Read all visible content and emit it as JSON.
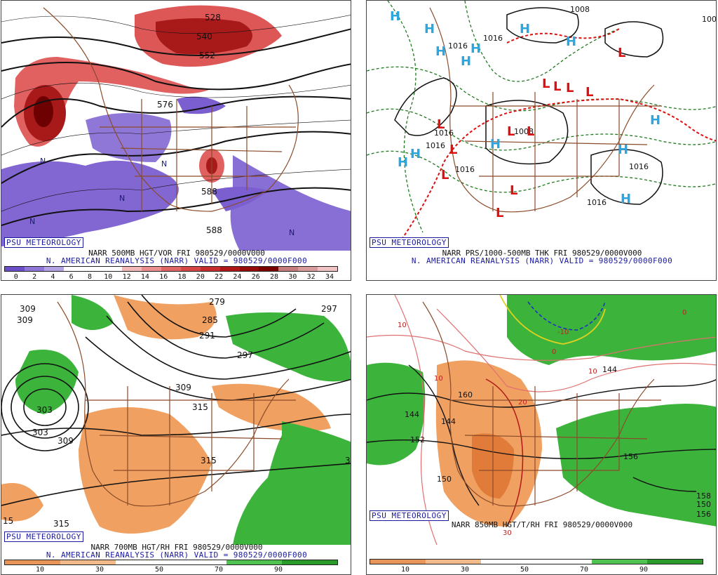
{
  "panels": [
    {
      "badge": "PSU METEOROLOGY",
      "caption1": "NARR 500MB HGT/VOR FRI 980529/0000V000",
      "caption2": "N. AMERICAN REANALYSIS (NARR) VALID = 980529/0000F000",
      "colorbar": {
        "ticks": [
          "0",
          "2",
          "4",
          "6",
          "8",
          "10",
          "12",
          "14",
          "16",
          "18",
          "20",
          "22",
          "24",
          "26",
          "28",
          "30",
          "32",
          "34"
        ],
        "colors": [
          "#6a4fc9",
          "#8f77d8",
          "#b3a2e4",
          "#ffffff",
          "#ffffff",
          "#ffffff",
          "#f2b7b7",
          "#ea8e8e",
          "#e06666",
          "#d54747",
          "#c62d2d",
          "#b01818",
          "#960b0b",
          "#7a0000",
          "#c47c7c",
          "#d99c9c",
          "#f0c4c4"
        ]
      },
      "contour_labels": [
        "528",
        "540",
        "552",
        "576",
        "588",
        "588"
      ],
      "feature_labels": [
        "N",
        "N",
        "N",
        "N",
        "N"
      ]
    },
    {
      "badge": "PSU METEOROLOGY",
      "caption1": "NARR PRS/1000-500MB THK FRI 980529/0000V000",
      "caption2": "N. AMERICAN REANALYSIS (NARR) VALID = 980529/0000F000",
      "contour_labels": [
        "1008",
        "1016",
        "1016",
        "1016",
        "1016",
        "1016",
        "1016",
        "1008",
        "1008",
        "1016"
      ],
      "high_labels": [
        "H",
        "H",
        "H",
        "H",
        "H",
        "H",
        "H",
        "H",
        "H",
        "H",
        "H",
        "H",
        "H"
      ],
      "low_labels": [
        "L",
        "L",
        "L",
        "L",
        "L",
        "L",
        "L",
        "L",
        "L",
        "L",
        "L",
        "L"
      ]
    },
    {
      "badge": "PSU METEOROLOGY",
      "caption1": "NARR 700MB HGT/RH FRI 980529/0000V000",
      "caption2": "N. AMERICAN REANALYSIS (NARR) VALID = 980529/0000F000",
      "colorbar": {
        "ticks": [
          "10",
          "30",
          "50",
          "70",
          "90"
        ],
        "colors": [
          "#e8955a",
          "#f2b98a",
          "#ffffff",
          "#ffffff",
          "#4fc24f",
          "#2a9a2a"
        ]
      },
      "contour_labels": [
        "309",
        "309",
        "279",
        "285",
        "291",
        "297",
        "297",
        "303",
        "303",
        "309",
        "309",
        "315",
        "315",
        "315",
        "3",
        "15"
      ]
    },
    {
      "badge": "PSU METEOROLOGY",
      "caption1": "NARR 850MB HGT/T/RH FRI 980529/0000V000",
      "caption2": "",
      "colorbar": {
        "ticks": [
          "10",
          "30",
          "50",
          "70",
          "90"
        ],
        "colors": [
          "#e8955a",
          "#f2b98a",
          "#ffffff",
          "#ffffff",
          "#4fc24f",
          "#2a9a2a"
        ]
      },
      "contour_labels": [
        "10",
        "10",
        "-10",
        "0",
        "0",
        "10",
        "20",
        "30",
        "144",
        "144",
        "144",
        "152",
        "150",
        "156",
        "150",
        "156",
        "158",
        "160"
      ]
    }
  ]
}
